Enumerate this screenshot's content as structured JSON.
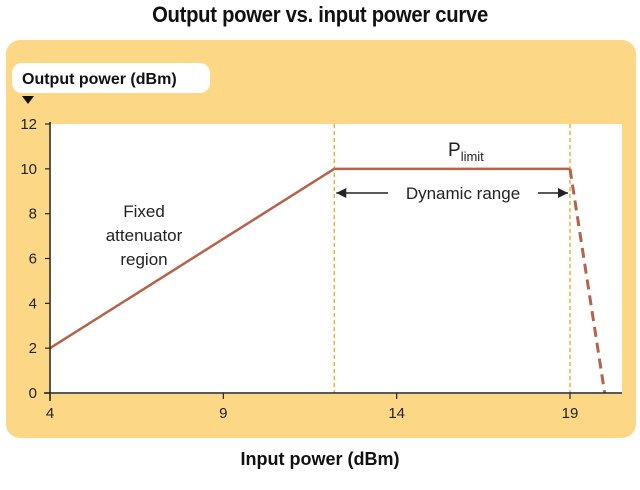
{
  "chart_data": {
    "type": "line",
    "title": "Output power vs. input power curve",
    "xlabel": "Input power (dBm)",
    "ylabel": "Output power (dBm)",
    "xlim": [
      4,
      20.5
    ],
    "ylim": [
      0,
      12
    ],
    "xticks": [
      4,
      9,
      14,
      19
    ],
    "yticks": [
      0,
      2,
      4,
      6,
      8,
      10,
      12
    ],
    "grid": false,
    "series": [
      {
        "name": "",
        "style": "solid",
        "x": [
          4,
          12.2,
          19
        ],
        "y": [
          2,
          10,
          10
        ]
      },
      {
        "name": "",
        "style": "dashed",
        "x": [
          19,
          20
        ],
        "y": [
          10,
          0
        ]
      }
    ],
    "vlines": [
      12.2,
      19
    ],
    "annotations": {
      "region": [
        "Fixed",
        "attenuator",
        "region"
      ],
      "plimit_main": "P",
      "plimit_sub": "limit",
      "dynamic_range": "Dynamic range"
    }
  },
  "colors": {
    "panel": "#fcd886",
    "line": "#b5634a",
    "guide": "#f0a418",
    "axis": "#222222"
  }
}
